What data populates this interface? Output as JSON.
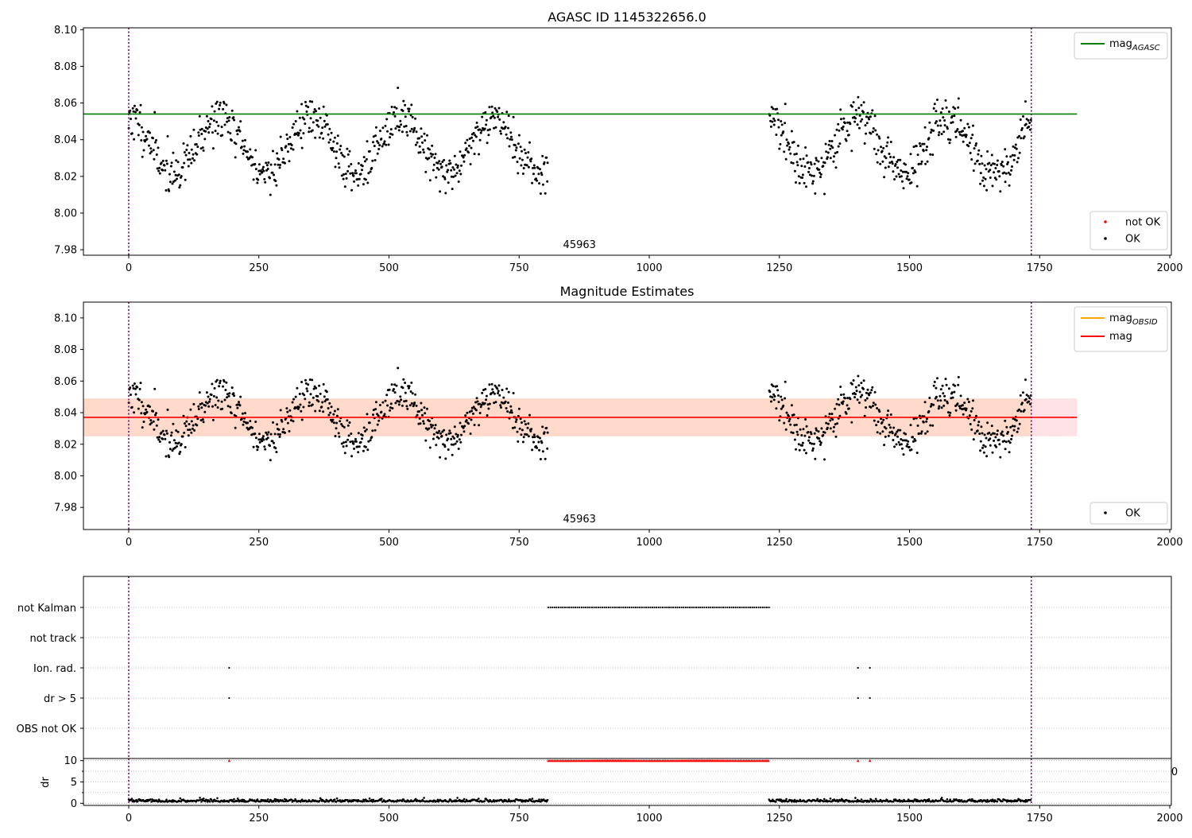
{
  "chart_data": [
    {
      "type": "scatter",
      "title": "AGASC ID 1145322656.0",
      "xlim": [
        -87,
        2003
      ],
      "ylim": [
        7.977,
        8.101
      ],
      "xticks": [
        "0",
        "250",
        "500",
        "750",
        "1000",
        "1250",
        "1500",
        "1750",
        "2000"
      ],
      "yticks": [
        "7.98",
        "8.00",
        "8.02",
        "8.04",
        "8.06",
        "8.08",
        "8.10"
      ],
      "obsid_label": "45963",
      "vlines_x": [
        0,
        1734
      ],
      "hline": {
        "name": "mag_AGASC",
        "y": 8.054,
        "x": [
          -87,
          1822
        ],
        "color": "#008000"
      },
      "legend_lines": [
        {
          "name": "mag",
          "sub": "AGASC",
          "color": "#008000"
        }
      ],
      "legend_points": [
        {
          "name": "not OK",
          "color": "#ff0000"
        },
        {
          "name": "OK",
          "color": "#000000"
        }
      ],
      "series": [
        {
          "name": "OK",
          "x_ranges": [
            [
              0,
              806
            ],
            [
              1230,
              1734
            ]
          ],
          "mean": 8.037,
          "amplitude": 0.015,
          "period": 175,
          "phase_x": 175,
          "noise": 0.006,
          "count": 1050
        }
      ]
    },
    {
      "type": "scatter",
      "title": "Magnitude Estimates",
      "xlim": [
        -87,
        2003
      ],
      "ylim": [
        7.966,
        8.11
      ],
      "xticks": [
        "0",
        "250",
        "500",
        "750",
        "1000",
        "1250",
        "1500",
        "1750",
        "2000"
      ],
      "yticks": [
        "7.98",
        "8.00",
        "8.02",
        "8.04",
        "8.06",
        "8.08",
        "8.10"
      ],
      "obsid_label": "45963",
      "vlines_x": [
        0,
        1734
      ],
      "hline": {
        "name": "mag",
        "y": 8.037,
        "x": [
          -87,
          1822
        ],
        "color": "#ff0000"
      },
      "band": {
        "y": [
          8.025,
          8.049
        ],
        "x_orange": [
          -87,
          1734
        ],
        "x_pink": [
          1734,
          1822
        ]
      },
      "legend_lines": [
        {
          "name": "mag",
          "sub": "OBSID",
          "color": "#ffa500"
        },
        {
          "name": "mag",
          "sub": "",
          "color": "#ff0000"
        }
      ],
      "legend_points": [
        {
          "name": "OK",
          "color": "#000000"
        }
      ],
      "series": [
        {
          "name": "OK",
          "x_ranges": [
            [
              0,
              806
            ],
            [
              1230,
              1734
            ]
          ],
          "mean": 8.037,
          "amplitude": 0.015,
          "period": 175,
          "phase_x": 175,
          "noise": 0.006,
          "count": 1050
        }
      ]
    },
    {
      "type": "scatter",
      "xlim": [
        -87,
        2003
      ],
      "categories": [
        "not Kalman",
        "not track",
        "Ion. rad.",
        "dr > 5",
        "OBS not OK"
      ],
      "flags": [
        {
          "category": "not Kalman",
          "x_range": [
            806,
            1230
          ],
          "step": 4
        },
        {
          "category": "Ion. rad.",
          "x": [
            193,
            1401,
            1424
          ]
        },
        {
          "category": "dr > 5",
          "x": [
            193,
            1401,
            1424
          ]
        }
      ],
      "vlines_x": [
        0,
        1734
      ]
    },
    {
      "type": "scatter",
      "ylabel": "dr",
      "xlim": [
        -87,
        2003
      ],
      "ylim": [
        -0.5,
        10.5
      ],
      "xticks": [
        "0",
        "250",
        "500",
        "750",
        "1000",
        "1250",
        "1500",
        "1750",
        "2000"
      ],
      "yticks": [
        "0",
        "5",
        "10"
      ],
      "edge_label": "0",
      "vlines_x": [
        0,
        1734
      ],
      "series": [
        {
          "name": "dr",
          "color": "#000000",
          "x_ranges": [
            [
              0,
              806
            ],
            [
              1230,
              1734
            ]
          ],
          "base": 0.35,
          "noise": 0.3,
          "count": 900
        },
        {
          "name": "dr high",
          "color": "#ff0000",
          "y": 10,
          "x_range": [
            806,
            1230
          ],
          "step": 3,
          "extra_x": [
            193,
            1401,
            1424
          ]
        }
      ]
    }
  ]
}
